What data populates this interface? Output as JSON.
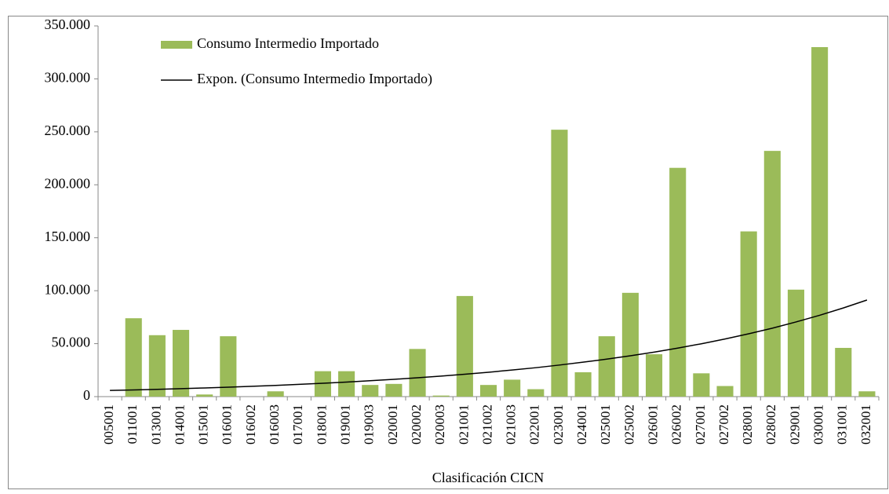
{
  "chart_data": {
    "type": "bar",
    "x_label": "Clasificación CICN",
    "categories": [
      "005001",
      "011001",
      "013001",
      "014001",
      "015001",
      "016001",
      "016002",
      "016003",
      "017001",
      "018001",
      "019001",
      "019003",
      "020001",
      "020002",
      "020003",
      "021001",
      "021002",
      "021003",
      "022001",
      "023001",
      "024001",
      "025001",
      "025002",
      "026001",
      "026002",
      "027001",
      "027002",
      "028001",
      "028002",
      "029001",
      "030001",
      "031001",
      "032001"
    ],
    "series": [
      {
        "name": "Consumo Intermedio Importado",
        "type": "bar",
        "color": "#9bbb59",
        "values": [
          0,
          74000,
          58000,
          63000,
          2000,
          57000,
          0,
          5000,
          0,
          24000,
          24000,
          11000,
          12000,
          45000,
          1000,
          95000,
          11000,
          16000,
          7000,
          252000,
          23000,
          57000,
          98000,
          40000,
          216000,
          22000,
          10000,
          156000,
          232000,
          101000,
          330000,
          46000,
          5000
        ]
      },
      {
        "name": "Expon. (Consumo Intermedio Importado)",
        "type": "line",
        "color": "#000000",
        "values": [
          5800,
          6300,
          6900,
          7500,
          8200,
          8900,
          9700,
          10600,
          11600,
          12600,
          13700,
          15000,
          16300,
          17800,
          19400,
          21100,
          23000,
          25100,
          27300,
          29800,
          32500,
          35400,
          38600,
          42000,
          45800,
          49900,
          54400,
          59300,
          64600,
          70500,
          76800,
          83700,
          91200
        ]
      }
    ],
    "ylim": [
      0,
      350000
    ],
    "yticks": [
      0,
      {
        "value": 50000,
        "label": "50.000"
      },
      {
        "value": 100000,
        "label": "100.000"
      },
      {
        "value": 150000,
        "label": "150.000"
      },
      {
        "value": 200000,
        "label": "200.000"
      },
      {
        "value": 250000,
        "label": "250.000"
      },
      {
        "value": 300000,
        "label": "300.000"
      },
      {
        "value": 350000,
        "label": "350.000"
      }
    ],
    "legend": "top-left"
  }
}
